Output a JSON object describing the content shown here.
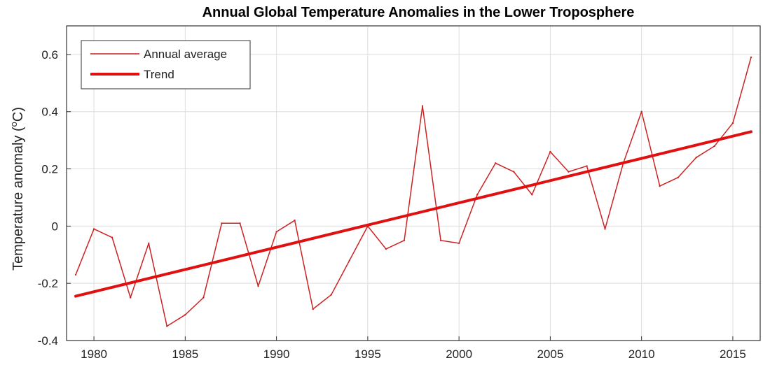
{
  "chart_data": {
    "type": "line",
    "title": "Annual Global Temperature Anomalies in the Lower Troposphere",
    "xlabel": "",
    "ylabel": "Temperature anomaly (°C)",
    "ylabel_parts": {
      "before": "Temperature anomaly (",
      "superscript": "o",
      "after": "C)"
    },
    "xlim": [
      1978.5,
      2016.5
    ],
    "ylim": [
      -0.4,
      0.7
    ],
    "x_ticks": [
      1980,
      1985,
      1990,
      1995,
      2000,
      2005,
      2010,
      2015
    ],
    "y_ticks": [
      -0.4,
      -0.2,
      0,
      0.2,
      0.4,
      0.6
    ],
    "y_tick_labels": [
      "-0.4",
      "-0.2",
      "0",
      "0.2",
      "0.4",
      "0.6"
    ],
    "grid": true,
    "legend_position": "top-left",
    "series": [
      {
        "name": "Annual average",
        "color": "#cc2222",
        "style": "thin",
        "x": [
          1979,
          1980,
          1981,
          1982,
          1983,
          1984,
          1985,
          1986,
          1987,
          1988,
          1989,
          1990,
          1991,
          1992,
          1993,
          1994,
          1995,
          1996,
          1997,
          1998,
          1999,
          2000,
          2001,
          2002,
          2003,
          2004,
          2005,
          2006,
          2007,
          2008,
          2009,
          2010,
          2011,
          2012,
          2013,
          2014,
          2015,
          2016
        ],
        "y": [
          -0.17,
          -0.01,
          -0.04,
          -0.25,
          -0.06,
          -0.35,
          -0.31,
          -0.25,
          0.01,
          0.01,
          -0.21,
          -0.02,
          0.02,
          -0.29,
          -0.24,
          -0.12,
          0.0,
          -0.08,
          -0.05,
          0.42,
          -0.05,
          -0.06,
          0.11,
          0.22,
          0.19,
          0.11,
          0.26,
          0.19,
          0.21,
          -0.01,
          0.22,
          0.4,
          0.14,
          0.17,
          0.24,
          0.28,
          0.36,
          0.59
        ]
      },
      {
        "name": "Trend",
        "color": "#e01010",
        "style": "thick",
        "x": [
          1979,
          2016
        ],
        "y": [
          -0.245,
          0.33
        ]
      }
    ]
  }
}
